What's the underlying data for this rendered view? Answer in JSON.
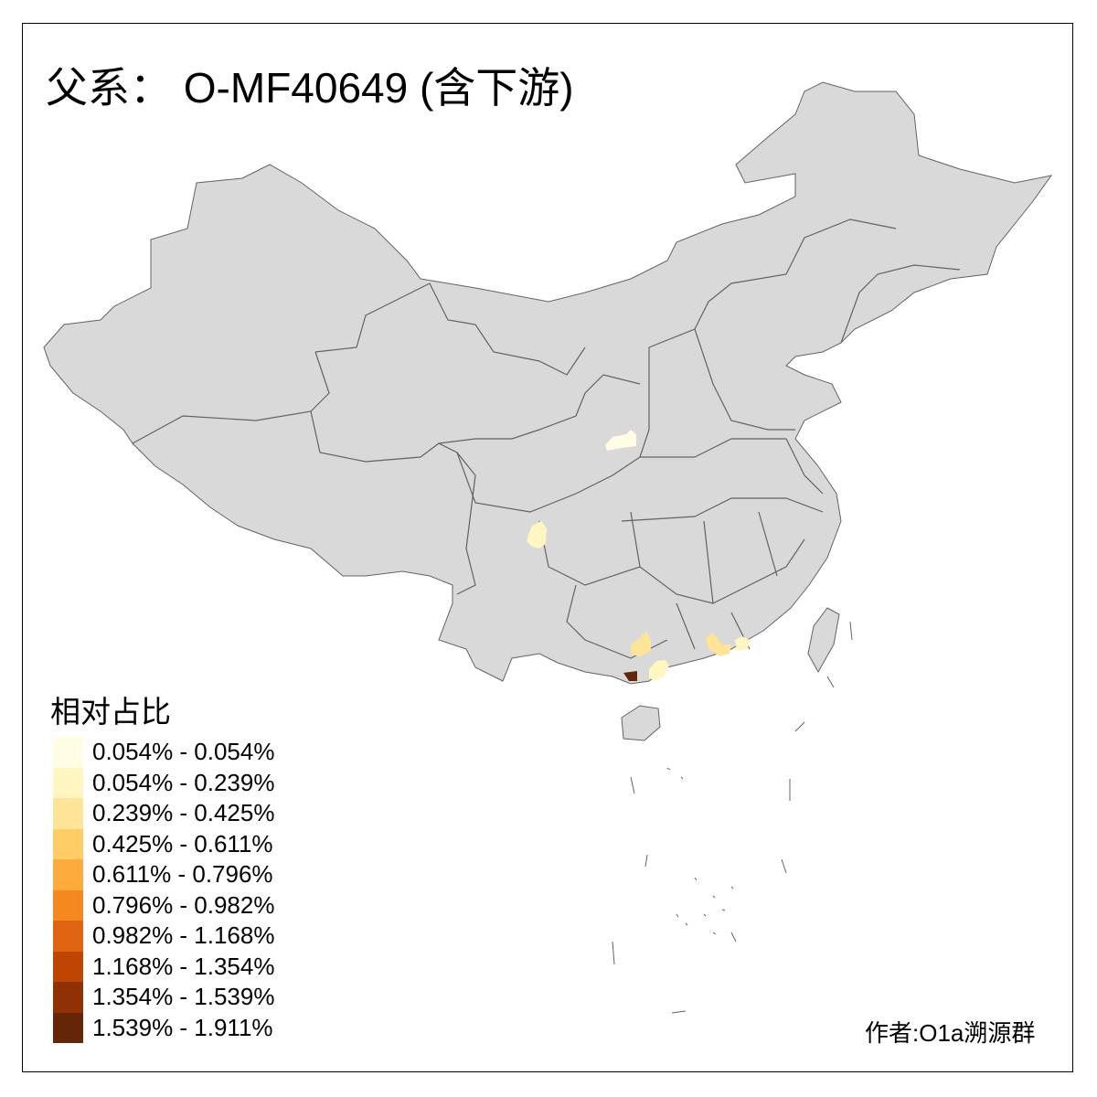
{
  "title": "父系： O-MF40649 (含下游)",
  "legend": {
    "title": "相对占比",
    "items": [
      {
        "label": "0.054% - 0.054%",
        "color": "#FFFEE4"
      },
      {
        "label": "0.054% - 0.239%",
        "color": "#FFF6C1"
      },
      {
        "label": "0.239% - 0.425%",
        "color": "#FEE498"
      },
      {
        "label": "0.425% - 0.611%",
        "color": "#FECD66"
      },
      {
        "label": "0.611% - 0.796%",
        "color": "#FDAB3D"
      },
      {
        "label": "0.796% - 0.982%",
        "color": "#F5891F"
      },
      {
        "label": "0.982% - 1.168%",
        "color": "#E06412"
      },
      {
        "label": "1.168% - 1.354%",
        "color": "#BF4505"
      },
      {
        "label": "1.354% - 1.539%",
        "color": "#8F3104"
      },
      {
        "label": "1.539% - 1.911%",
        "color": "#662506"
      }
    ]
  },
  "map_colors": {
    "base": "#D9D9D9",
    "border": "#636363"
  },
  "highlighted_regions": [
    {
      "area": "shaanxi-central",
      "class": 0
    },
    {
      "area": "sichuan-west",
      "class": 1
    },
    {
      "area": "guangxi-central",
      "class": 2
    },
    {
      "area": "guangxi-south",
      "class": 9
    },
    {
      "area": "guangdong-west",
      "class": 1
    },
    {
      "area": "guangdong-central",
      "class": 2
    },
    {
      "area": "guangdong-east",
      "class": 1
    }
  ],
  "credit": "作者:O1a溯源群"
}
